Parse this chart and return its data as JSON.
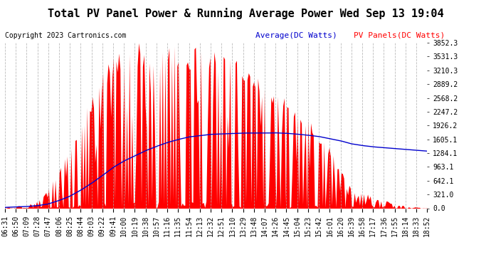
{
  "title": "Total PV Panel Power & Running Average Power Wed Sep 13 19:04",
  "copyright": "Copyright 2023 Cartronics.com",
  "legend_average": "Average(DC Watts)",
  "legend_pv": "PV Panels(DC Watts)",
  "ylabel_right_ticks": [
    0.0,
    321.0,
    642.1,
    963.1,
    1284.1,
    1605.1,
    1926.2,
    2247.2,
    2568.2,
    2889.2,
    3210.3,
    3531.3,
    3852.3
  ],
  "ylim": [
    0,
    3852.3
  ],
  "xtick_labels": [
    "06:31",
    "06:50",
    "07:09",
    "07:28",
    "07:47",
    "08:06",
    "08:25",
    "08:44",
    "09:03",
    "09:22",
    "09:41",
    "10:00",
    "10:19",
    "10:38",
    "10:57",
    "11:16",
    "11:35",
    "11:54",
    "12:13",
    "12:32",
    "12:51",
    "13:10",
    "13:29",
    "13:48",
    "14:07",
    "14:26",
    "14:45",
    "15:04",
    "15:23",
    "15:42",
    "16:01",
    "16:20",
    "16:39",
    "16:58",
    "17:17",
    "17:36",
    "17:55",
    "18:14",
    "18:33",
    "18:52"
  ],
  "pv_envelope": [
    20,
    50,
    100,
    200,
    500,
    900,
    1400,
    2000,
    2600,
    3200,
    3600,
    3800,
    3850,
    3850,
    3850,
    3850,
    3850,
    3800,
    3750,
    3700,
    3600,
    3500,
    3400,
    3200,
    3000,
    2800,
    2600,
    2400,
    2100,
    1800,
    1400,
    900,
    500,
    400,
    300,
    200,
    100,
    60,
    30,
    10
  ],
  "avg_data": [
    20,
    30,
    40,
    60,
    100,
    180,
    280,
    420,
    580,
    760,
    950,
    1100,
    1220,
    1340,
    1440,
    1530,
    1600,
    1660,
    1690,
    1720,
    1730,
    1740,
    1750,
    1750,
    1750,
    1755,
    1745,
    1725,
    1700,
    1670,
    1620,
    1570,
    1500,
    1460,
    1430,
    1410,
    1390,
    1370,
    1350,
    1330
  ],
  "title_fontsize": 11,
  "axis_fontsize": 7,
  "copyright_fontsize": 7,
  "legend_fontsize": 8,
  "pv_color": "#FF0000",
  "avg_color": "#0000CD",
  "grid_color": "#AAAAAA",
  "background_color": "#FFFFFF",
  "title_color": "#000000",
  "copyright_color": "#000000",
  "spike_density": 8,
  "spike_seed": 123
}
